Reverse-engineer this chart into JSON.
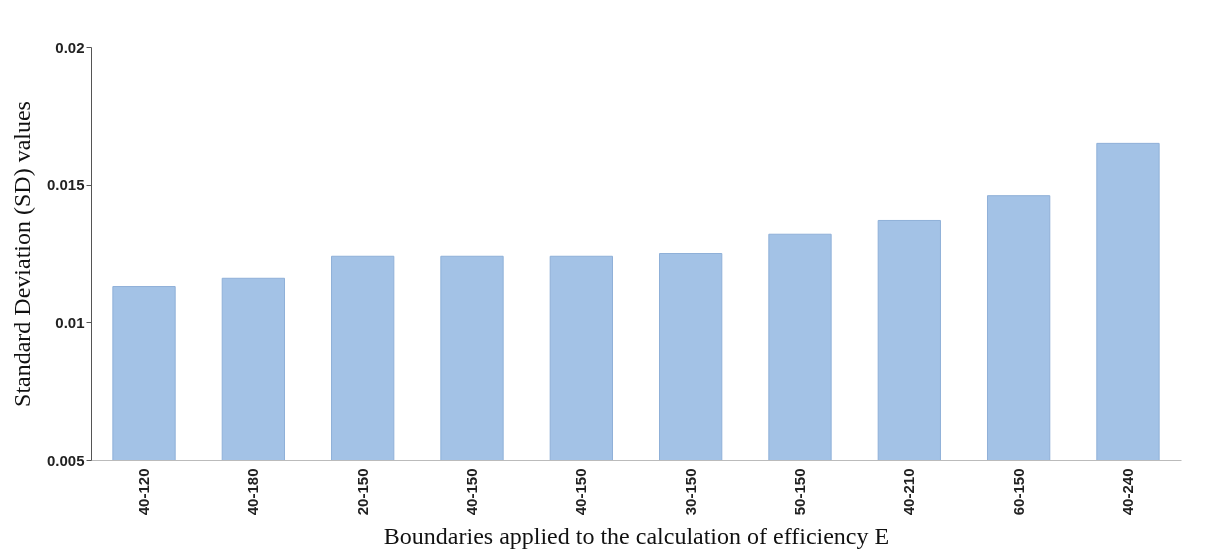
{
  "chart_data": {
    "type": "bar",
    "xlabel": "Boundaries applied to the calculation of efficiency E",
    "ylabel": "Standard Deviation (SD) values",
    "categories": [
      "40-120",
      "40-180",
      "20-150",
      "40-150",
      "40-150",
      "30-150",
      "50-150",
      "40-210",
      "60-150",
      "40-240"
    ],
    "values": [
      0.0113,
      0.0116,
      0.0124,
      0.0124,
      0.0124,
      0.0125,
      0.0132,
      0.0137,
      0.0146,
      0.0165
    ],
    "color": "#a3c2e6",
    "ylim": [
      0.005,
      0.02
    ],
    "yticks": [
      0.005,
      0.01,
      0.015,
      0.02
    ],
    "grid": false
  }
}
